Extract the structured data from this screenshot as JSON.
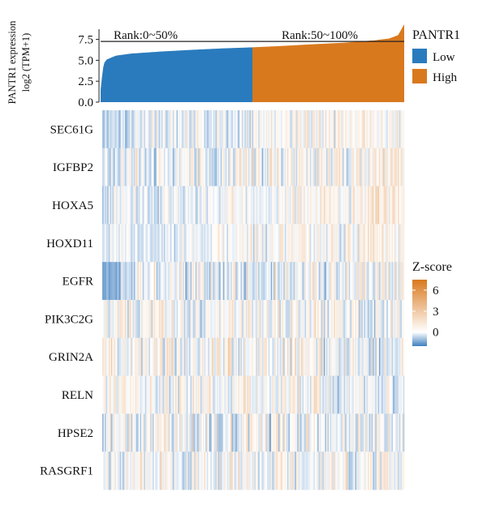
{
  "chart_data": [
    {
      "type": "area",
      "ylabel_lines": [
        "PANTR1 expression",
        "log2 (TPM+1)"
      ],
      "yticks": [
        0.0,
        2.5,
        5.0,
        7.5
      ],
      "ylim": [
        0,
        9.3
      ],
      "threshold_line": 7.25,
      "groups": [
        {
          "name": "Low",
          "rank_label": "Rank:0~50%",
          "color": "#2a7bbd"
        },
        {
          "name": "High",
          "rank_label": "Rank:50~100%",
          "color": "#d9791e"
        }
      ],
      "profile_rank": [
        0,
        0.005,
        0.01,
        0.02,
        0.05,
        0.1,
        0.2,
        0.3,
        0.4,
        0.5,
        0.6,
        0.7,
        0.8,
        0.9,
        0.95,
        0.98,
        1.0
      ],
      "profile_value": [
        1.5,
        3.2,
        4.6,
        5.1,
        5.55,
        5.8,
        6.05,
        6.25,
        6.42,
        6.55,
        6.72,
        6.92,
        7.1,
        7.38,
        7.6,
        8.0,
        9.3
      ]
    },
    {
      "type": "heatmap",
      "genes": [
        "SEC61G",
        "IGFBP2",
        "HOXA5",
        "HOXD11",
        "EGFR",
        "PIK3C2G",
        "GRIN2A",
        "RELN",
        "HPSE2",
        "RASGRF1"
      ],
      "row_mean_low": [
        -0.35,
        -0.2,
        -0.3,
        -0.25,
        -0.25,
        0.05,
        0.15,
        0.1,
        -0.1,
        0.05
      ],
      "row_mean_high": [
        0.25,
        0.2,
        0.3,
        0.2,
        0.05,
        -0.05,
        -0.15,
        -0.1,
        -0.1,
        -0.05
      ],
      "row_noise": [
        0.35,
        0.45,
        0.3,
        0.3,
        0.45,
        0.4,
        0.45,
        0.4,
        0.5,
        0.45
      ],
      "columns": 240,
      "colorscale": {
        "low": "#3f7fbf",
        "mid": "#ffffff",
        "high": "#d9791e"
      }
    }
  ],
  "legend": {
    "title": "PANTR1",
    "items": [
      {
        "label": "Low",
        "color": "#2a7bbd"
      },
      {
        "label": "High",
        "color": "#d9791e"
      }
    ]
  },
  "colorbar": {
    "title": "Z-score",
    "ticks": [
      6,
      3,
      0
    ],
    "range": [
      -2,
      7.5
    ]
  }
}
